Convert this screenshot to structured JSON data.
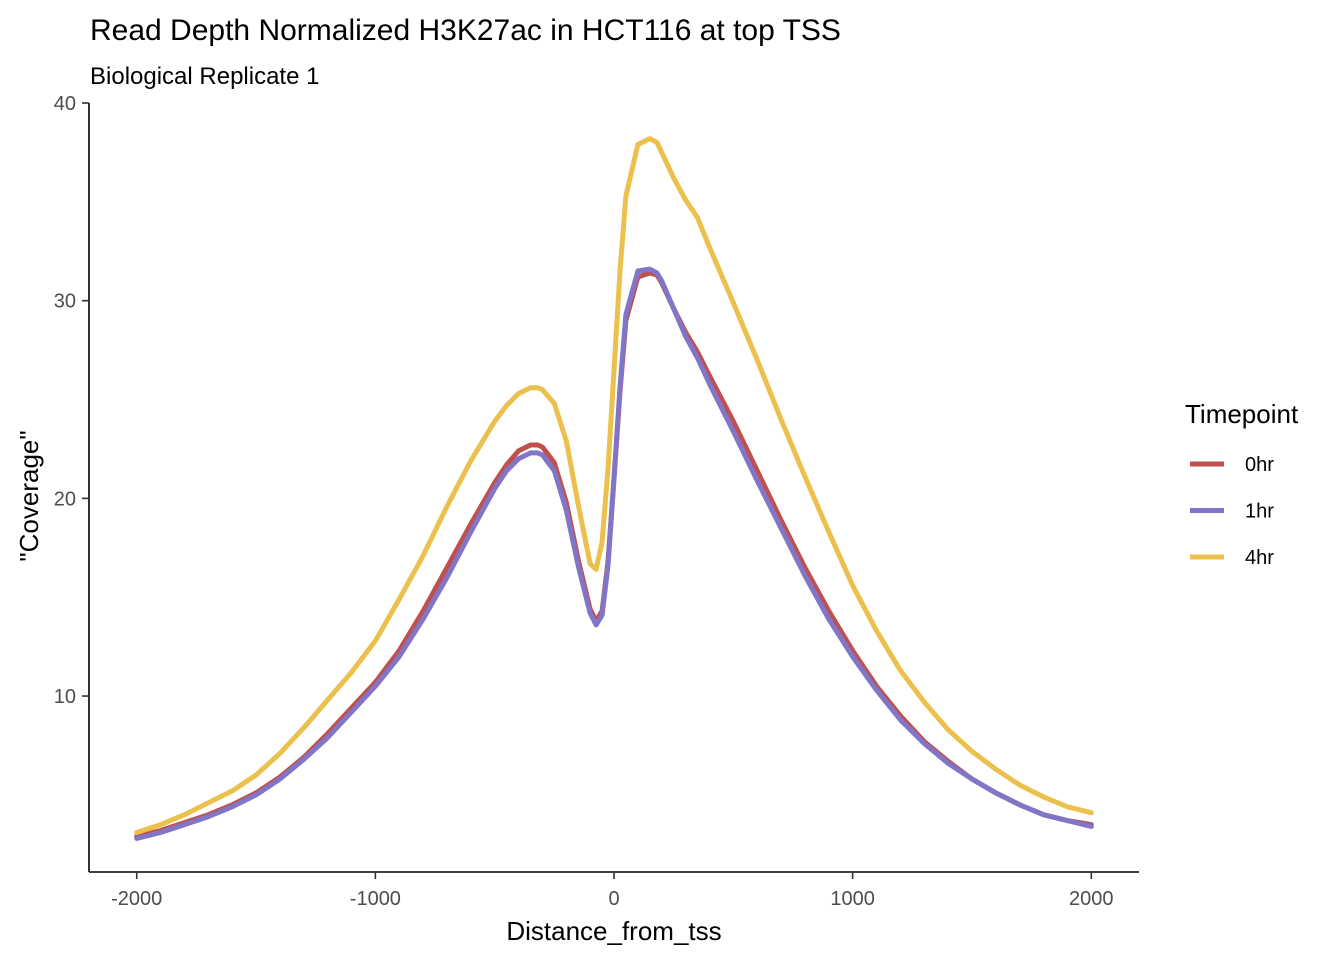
{
  "chart_data": {
    "type": "line",
    "title": "Read Depth Normalized H3K27ac in HCT116 at top TSS",
    "subtitle": "Biological Replicate 1",
    "xlabel": "Distance_from_tss",
    "ylabel": "\"Coverage\"",
    "xlim": [
      -2200,
      2200
    ],
    "ylim": [
      1.1,
      40
    ],
    "x_ticks": [
      -2000,
      -1000,
      0,
      1000,
      2000
    ],
    "x_tick_labels": [
      "-2000",
      "-1000",
      "0",
      "1000",
      "2000"
    ],
    "y_ticks": [
      10,
      20,
      30,
      40
    ],
    "y_tick_labels": [
      "10",
      "20",
      "30",
      "40"
    ],
    "grid": false,
    "legend": {
      "title": "Timepoint",
      "placement": "right"
    },
    "series": [
      {
        "name": "0hr",
        "color": "#C0504D",
        "x": [
          -2000,
          -1900,
          -1800,
          -1700,
          -1600,
          -1500,
          -1400,
          -1300,
          -1200,
          -1100,
          -1000,
          -900,
          -800,
          -700,
          -600,
          -500,
          -450,
          -400,
          -350,
          -320,
          -300,
          -250,
          -200,
          -150,
          -100,
          -75,
          -50,
          -25,
          0,
          25,
          50,
          100,
          150,
          180,
          200,
          250,
          300,
          350,
          400,
          500,
          600,
          700,
          800,
          900,
          1000,
          1100,
          1200,
          1300,
          1400,
          1500,
          1600,
          1700,
          1800,
          1900,
          2000
        ],
        "y": [
          2.9,
          3.2,
          3.6,
          4.0,
          4.5,
          5.1,
          5.9,
          6.9,
          8.1,
          9.4,
          10.7,
          12.3,
          14.3,
          16.5,
          18.7,
          20.8,
          21.7,
          22.4,
          22.7,
          22.7,
          22.6,
          21.8,
          19.8,
          16.9,
          14.4,
          13.8,
          14.3,
          16.8,
          21.0,
          25.4,
          29.0,
          31.2,
          31.4,
          31.3,
          30.9,
          29.6,
          28.4,
          27.4,
          26.2,
          23.9,
          21.4,
          18.9,
          16.5,
          14.3,
          12.3,
          10.5,
          9.0,
          7.7,
          6.7,
          5.8,
          5.1,
          4.5,
          4.0,
          3.7,
          3.5
        ]
      },
      {
        "name": "1hr",
        "color": "#8175C8",
        "x": [
          -2000,
          -1900,
          -1800,
          -1700,
          -1600,
          -1500,
          -1400,
          -1300,
          -1200,
          -1100,
          -1000,
          -900,
          -800,
          -700,
          -600,
          -500,
          -450,
          -400,
          -350,
          -320,
          -300,
          -250,
          -200,
          -150,
          -100,
          -75,
          -50,
          -25,
          0,
          25,
          50,
          100,
          150,
          180,
          200,
          250,
          300,
          350,
          400,
          500,
          600,
          700,
          800,
          900,
          1000,
          1100,
          1200,
          1300,
          1400,
          1500,
          1600,
          1700,
          1800,
          1900,
          2000
        ],
        "y": [
          2.8,
          3.1,
          3.5,
          3.9,
          4.4,
          5.0,
          5.8,
          6.8,
          7.9,
          9.2,
          10.5,
          12.0,
          13.9,
          16.0,
          18.3,
          20.5,
          21.4,
          22.0,
          22.3,
          22.3,
          22.2,
          21.4,
          19.4,
          16.6,
          14.2,
          13.6,
          14.1,
          16.6,
          21.0,
          25.6,
          29.3,
          31.5,
          31.6,
          31.4,
          31.0,
          29.6,
          28.2,
          27.1,
          25.8,
          23.4,
          20.9,
          18.5,
          16.1,
          13.9,
          12.0,
          10.3,
          8.8,
          7.6,
          6.6,
          5.8,
          5.1,
          4.5,
          4.0,
          3.7,
          3.4
        ]
      },
      {
        "name": "4hr",
        "color": "#EBC04D",
        "x": [
          -2000,
          -1900,
          -1800,
          -1700,
          -1600,
          -1500,
          -1400,
          -1300,
          -1200,
          -1100,
          -1000,
          -900,
          -800,
          -700,
          -600,
          -500,
          -450,
          -400,
          -350,
          -320,
          -300,
          -250,
          -200,
          -150,
          -100,
          -75,
          -50,
          -25,
          0,
          25,
          50,
          100,
          150,
          180,
          200,
          250,
          300,
          350,
          400,
          500,
          600,
          700,
          800,
          900,
          1000,
          1100,
          1200,
          1300,
          1400,
          1500,
          1600,
          1700,
          1800,
          1900,
          2000
        ],
        "y": [
          3.1,
          3.5,
          4.0,
          4.6,
          5.2,
          6.0,
          7.1,
          8.4,
          9.8,
          11.2,
          12.8,
          14.9,
          17.1,
          19.6,
          21.9,
          23.9,
          24.7,
          25.3,
          25.6,
          25.6,
          25.5,
          24.8,
          22.9,
          19.7,
          16.7,
          16.4,
          17.8,
          21.5,
          26.5,
          31.5,
          35.3,
          37.9,
          38.2,
          38.0,
          37.5,
          36.2,
          35.1,
          34.2,
          32.7,
          29.9,
          27.0,
          24.0,
          21.1,
          18.3,
          15.6,
          13.3,
          11.3,
          9.7,
          8.3,
          7.2,
          6.3,
          5.5,
          4.9,
          4.4,
          4.1
        ]
      }
    ]
  }
}
